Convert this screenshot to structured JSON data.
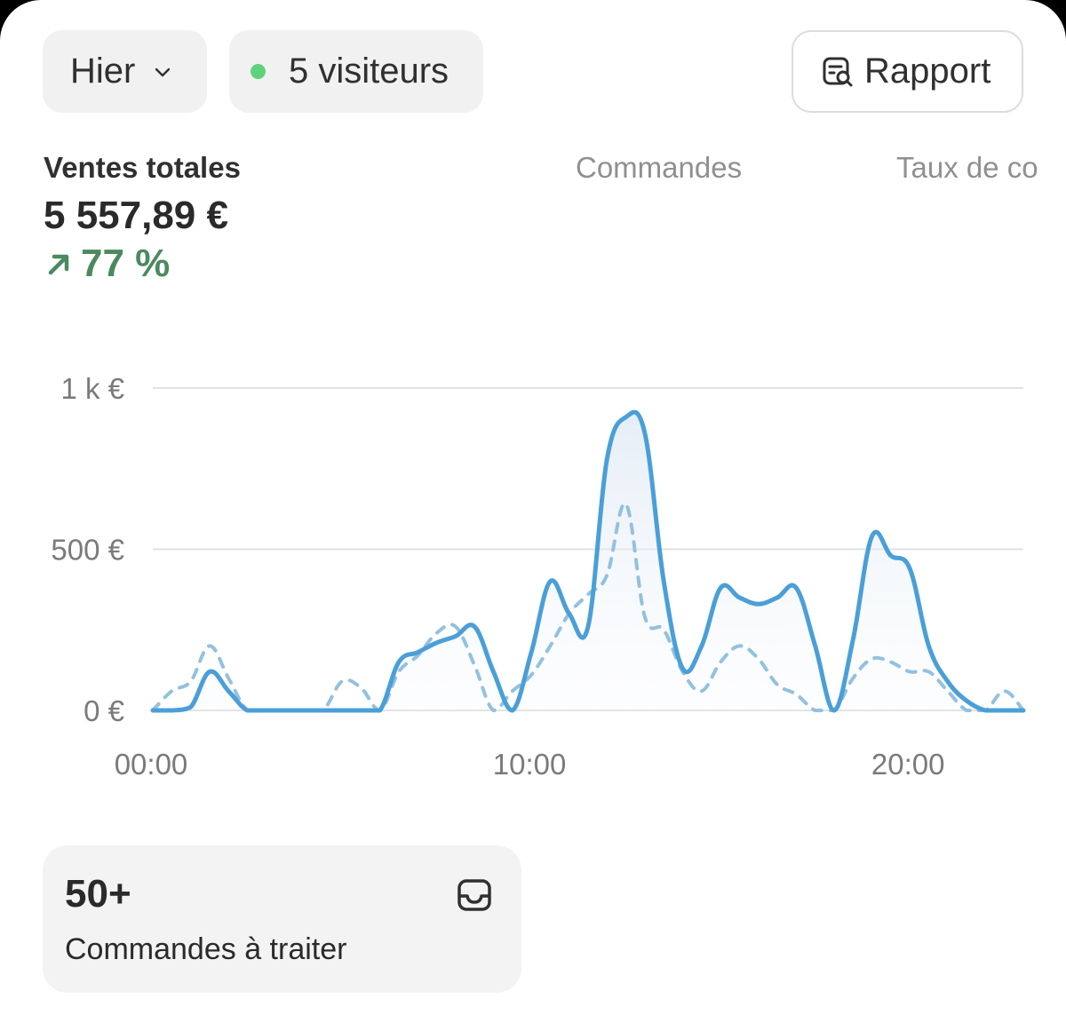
{
  "header": {
    "date_filter": "Hier",
    "visitors": "5 visiteurs",
    "report_button": "Rapport"
  },
  "metrics": {
    "tabs": [
      "Ventes totales",
      "Commandes",
      "Taux de co"
    ],
    "total_sales_value": "5 557,89 €",
    "total_sales_change": "77 %"
  },
  "colors": {
    "series_current": "#4a9fd8",
    "series_previous": "#93c1e0",
    "positive": "#4b8a5f",
    "online_dot": "#5fd37b"
  },
  "chart_data": {
    "type": "line",
    "x": [
      "00:00",
      "00:30",
      "01:00",
      "01:30",
      "02:00",
      "02:30",
      "03:00",
      "03:30",
      "04:00",
      "04:30",
      "05:00",
      "05:30",
      "06:00",
      "06:30",
      "07:00",
      "07:30",
      "08:00",
      "08:30",
      "09:00",
      "09:30",
      "10:00",
      "10:30",
      "11:00",
      "11:30",
      "12:00",
      "12:30",
      "13:00",
      "13:30",
      "14:00",
      "14:30",
      "15:00",
      "15:30",
      "16:00",
      "16:30",
      "17:00",
      "17:30",
      "18:00",
      "18:30",
      "19:00",
      "19:30",
      "20:00",
      "20:30",
      "21:00",
      "21:30",
      "22:00",
      "22:30",
      "23:00"
    ],
    "x_ticks": [
      "00:00",
      "10:00",
      "20:00"
    ],
    "y_ticks": [
      "0 €",
      "500 €",
      "1 k €"
    ],
    "ylim": [
      0,
      1000
    ],
    "series": [
      {
        "values": [
          0,
          0,
          10,
          120,
          60,
          0,
          0,
          0,
          0,
          0,
          0,
          0,
          0,
          150,
          180,
          210,
          230,
          260,
          120,
          0,
          180,
          400,
          300,
          260,
          780,
          910,
          860,
          400,
          130,
          200,
          380,
          350,
          330,
          350,
          380,
          200,
          0,
          220,
          540,
          480,
          440,
          200,
          90,
          30,
          0,
          0,
          0
        ],
        "style": "solid"
      },
      {
        "values": [
          0,
          60,
          90,
          200,
          100,
          0,
          0,
          0,
          0,
          0,
          90,
          70,
          0,
          120,
          170,
          240,
          260,
          140,
          0,
          60,
          110,
          200,
          300,
          360,
          420,
          640,
          290,
          250,
          120,
          60,
          150,
          200,
          160,
          80,
          50,
          0,
          0,
          100,
          160,
          150,
          120,
          120,
          60,
          0,
          0,
          60,
          0
        ],
        "style": "dashed"
      }
    ],
    "grid": true
  },
  "card": {
    "count": "50+",
    "label": "Commandes à traiter"
  }
}
